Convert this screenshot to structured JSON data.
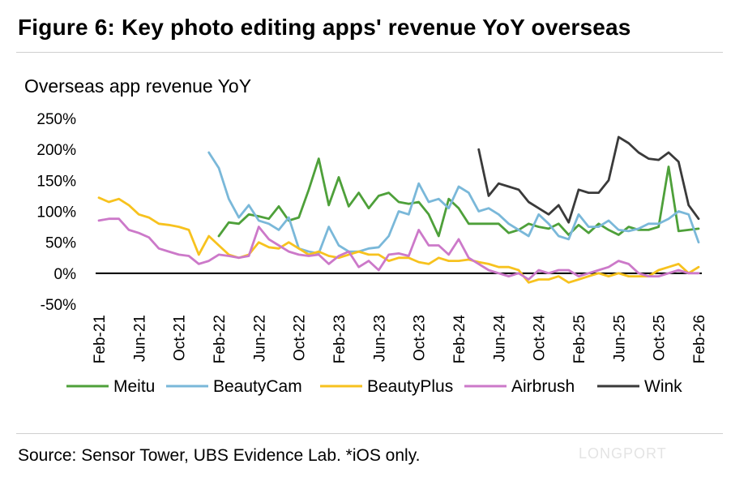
{
  "figure_title": "Figure 6: Key photo editing apps' revenue YoY overseas",
  "source_note": "Source: Sensor Tower, UBS Evidence Lab. *iOS only.",
  "watermark": "LONGPORT",
  "colors": {
    "Meitu": "#4ea03a",
    "BeautyCam": "#7ab8d9",
    "BeautyPlus": "#f7c21e",
    "Airbrush": "#cc79c9",
    "Wink": "#3a3a3a",
    "zero_line": "#000000"
  },
  "chart_data": {
    "type": "line",
    "title": "Overseas app revenue YoY",
    "xlabel": "",
    "ylabel": "",
    "ylim": [
      -50,
      250
    ],
    "yticks": [
      -50,
      0,
      50,
      100,
      150,
      200,
      250
    ],
    "ytick_labels": [
      "-50%",
      "0%",
      "50%",
      "100%",
      "150%",
      "200%",
      "250%"
    ],
    "x_tick_labels": [
      "Feb-21",
      "Jun-21",
      "Oct-21",
      "Feb-22",
      "Jun-22",
      "Oct-22",
      "Feb-23",
      "Jun-23",
      "Oct-23",
      "Feb-24",
      "Jun-24",
      "Oct-24",
      "Feb-25",
      "Jun-25",
      "Oct-25",
      "Feb-26"
    ],
    "x_start": "Feb-21",
    "x_end": "Feb-26",
    "grid": false,
    "legend_position": "bottom",
    "series": [
      {
        "name": "Meitu",
        "x": [
          "Feb-22",
          "Mar-22",
          "Apr-22",
          "May-22",
          "Jun-22",
          "Jul-22",
          "Aug-22",
          "Sep-22",
          "Oct-22",
          "Nov-22",
          "Dec-22",
          "Jan-23",
          "Feb-23",
          "Mar-23",
          "Apr-23",
          "May-23",
          "Jun-23",
          "Jul-23",
          "Aug-23",
          "Sep-23",
          "Oct-23",
          "Nov-23",
          "Dec-23",
          "Jan-24",
          "Feb-24",
          "Mar-24",
          "Apr-24",
          "May-24",
          "Jun-24",
          "Jul-24",
          "Aug-24",
          "Sep-24",
          "Oct-24",
          "Nov-24",
          "Dec-24",
          "Jan-25",
          "Feb-25",
          "Mar-25",
          "Apr-25",
          "May-25",
          "Jun-25",
          "Jul-25",
          "Aug-25",
          "Sep-25",
          "Oct-25",
          "Nov-25",
          "Dec-25",
          "Jan-26",
          "Feb-26"
        ],
        "values": [
          60,
          82,
          80,
          95,
          92,
          88,
          108,
          85,
          90,
          135,
          185,
          110,
          155,
          108,
          130,
          105,
          125,
          130,
          115,
          112,
          115,
          95,
          60,
          120,
          105,
          80,
          80,
          80,
          80,
          65,
          70,
          80,
          75,
          72,
          80,
          62,
          78,
          65,
          80,
          70,
          62,
          75,
          70,
          70,
          75,
          172,
          68,
          70,
          72
        ]
      },
      {
        "name": "BeautyCam",
        "x": [
          "Jan-22",
          "Feb-22",
          "Mar-22",
          "Apr-22",
          "May-22",
          "Jun-22",
          "Jul-22",
          "Aug-22",
          "Sep-22",
          "Oct-22",
          "Nov-22",
          "Dec-22",
          "Jan-23",
          "Feb-23",
          "Mar-23",
          "Apr-23",
          "May-23",
          "Jun-23",
          "Jul-23",
          "Aug-23",
          "Sep-23",
          "Oct-23",
          "Nov-23",
          "Dec-23",
          "Jan-24",
          "Feb-24",
          "Mar-24",
          "Apr-24",
          "May-24",
          "Jun-24",
          "Jul-24",
          "Aug-24",
          "Sep-24",
          "Oct-24",
          "Nov-24",
          "Dec-24",
          "Jan-25",
          "Feb-25",
          "Mar-25",
          "Apr-25",
          "May-25",
          "Jun-25",
          "Jul-25",
          "Aug-25",
          "Sep-25",
          "Oct-25",
          "Nov-25",
          "Dec-25",
          "Jan-26",
          "Feb-26"
        ],
        "values": [
          195,
          170,
          120,
          90,
          110,
          85,
          80,
          70,
          90,
          40,
          35,
          32,
          75,
          45,
          35,
          35,
          40,
          42,
          60,
          100,
          95,
          145,
          115,
          120,
          105,
          140,
          130,
          100,
          105,
          95,
          80,
          70,
          60,
          95,
          80,
          60,
          55,
          95,
          75,
          75,
          85,
          70,
          68,
          72,
          80,
          80,
          88,
          100,
          95,
          50
        ]
      },
      {
        "name": "BeautyPlus",
        "x": [
          "Feb-21",
          "Mar-21",
          "Apr-21",
          "May-21",
          "Jun-21",
          "Jul-21",
          "Aug-21",
          "Sep-21",
          "Oct-21",
          "Nov-21",
          "Dec-21",
          "Jan-22",
          "Feb-22",
          "Mar-22",
          "Apr-22",
          "May-22",
          "Jun-22",
          "Jul-22",
          "Aug-22",
          "Sep-22",
          "Oct-22",
          "Nov-22",
          "Dec-22",
          "Jan-23",
          "Feb-23",
          "Mar-23",
          "Apr-23",
          "May-23",
          "Jun-23",
          "Jul-23",
          "Aug-23",
          "Sep-23",
          "Oct-23",
          "Nov-23",
          "Dec-23",
          "Jan-24",
          "Feb-24",
          "Mar-24",
          "Apr-24",
          "May-24",
          "Jun-24",
          "Jul-24",
          "Aug-24",
          "Sep-24",
          "Oct-24",
          "Nov-24",
          "Dec-24",
          "Jan-25",
          "Feb-25",
          "Mar-25",
          "Apr-25",
          "May-25",
          "Jun-25",
          "Jul-25",
          "Aug-25",
          "Sep-25",
          "Oct-25",
          "Nov-25",
          "Dec-25",
          "Jan-26",
          "Feb-26"
        ],
        "values": [
          122,
          115,
          120,
          110,
          95,
          90,
          80,
          78,
          75,
          70,
          30,
          60,
          45,
          30,
          25,
          30,
          50,
          42,
          40,
          50,
          40,
          30,
          35,
          28,
          25,
          30,
          35,
          30,
          30,
          20,
          25,
          25,
          18,
          15,
          25,
          20,
          20,
          22,
          18,
          15,
          10,
          10,
          5,
          -15,
          -10,
          -10,
          -5,
          -15,
          -10,
          -5,
          0,
          -5,
          0,
          -5,
          -5,
          -5,
          5,
          10,
          15,
          0,
          10
        ]
      },
      {
        "name": "Airbrush",
        "x": [
          "Feb-21",
          "Mar-21",
          "Apr-21",
          "May-21",
          "Jun-21",
          "Jul-21",
          "Aug-21",
          "Sep-21",
          "Oct-21",
          "Nov-21",
          "Dec-21",
          "Jan-22",
          "Feb-22",
          "Mar-22",
          "Apr-22",
          "May-22",
          "Jun-22",
          "Jul-22",
          "Aug-22",
          "Sep-22",
          "Oct-22",
          "Nov-22",
          "Dec-22",
          "Jan-23",
          "Feb-23",
          "Mar-23",
          "Apr-23",
          "May-23",
          "Jun-23",
          "Jul-23",
          "Aug-23",
          "Sep-23",
          "Oct-23",
          "Nov-23",
          "Dec-23",
          "Jan-24",
          "Feb-24",
          "Mar-24",
          "Apr-24",
          "May-24",
          "Jun-24",
          "Jul-24",
          "Aug-24",
          "Sep-24",
          "Oct-24",
          "Nov-24",
          "Dec-24",
          "Jan-25",
          "Feb-25",
          "Mar-25",
          "Apr-25",
          "May-25",
          "Jun-25",
          "Jul-25",
          "Aug-25",
          "Sep-25",
          "Oct-25",
          "Nov-25",
          "Dec-25",
          "Jan-26",
          "Feb-26"
        ],
        "values": [
          85,
          88,
          88,
          70,
          65,
          58,
          40,
          35,
          30,
          28,
          15,
          20,
          30,
          28,
          25,
          28,
          75,
          55,
          45,
          35,
          30,
          28,
          30,
          15,
          28,
          35,
          10,
          20,
          5,
          30,
          32,
          28,
          70,
          45,
          45,
          30,
          55,
          25,
          15,
          5,
          0,
          -5,
          0,
          -10,
          5,
          0,
          5,
          5,
          -5,
          0,
          5,
          10,
          20,
          15,
          0,
          -5,
          -5,
          0,
          5,
          0,
          0
        ]
      },
      {
        "name": "Wink",
        "x": [
          "Apr-24",
          "May-24",
          "Jun-24",
          "Jul-24",
          "Aug-24",
          "Sep-24",
          "Oct-24",
          "Nov-24",
          "Dec-24",
          "Jan-25",
          "Feb-25",
          "Mar-25",
          "Apr-25",
          "May-25",
          "Jun-25",
          "Jul-25",
          "Aug-25",
          "Sep-25",
          "Oct-25",
          "Nov-25",
          "Dec-25",
          "Jan-26",
          "Feb-26"
        ],
        "values": [
          200,
          125,
          145,
          140,
          135,
          115,
          105,
          95,
          110,
          82,
          135,
          130,
          130,
          150,
          220,
          210,
          195,
          185,
          183,
          195,
          180,
          110,
          88
        ]
      }
    ]
  }
}
